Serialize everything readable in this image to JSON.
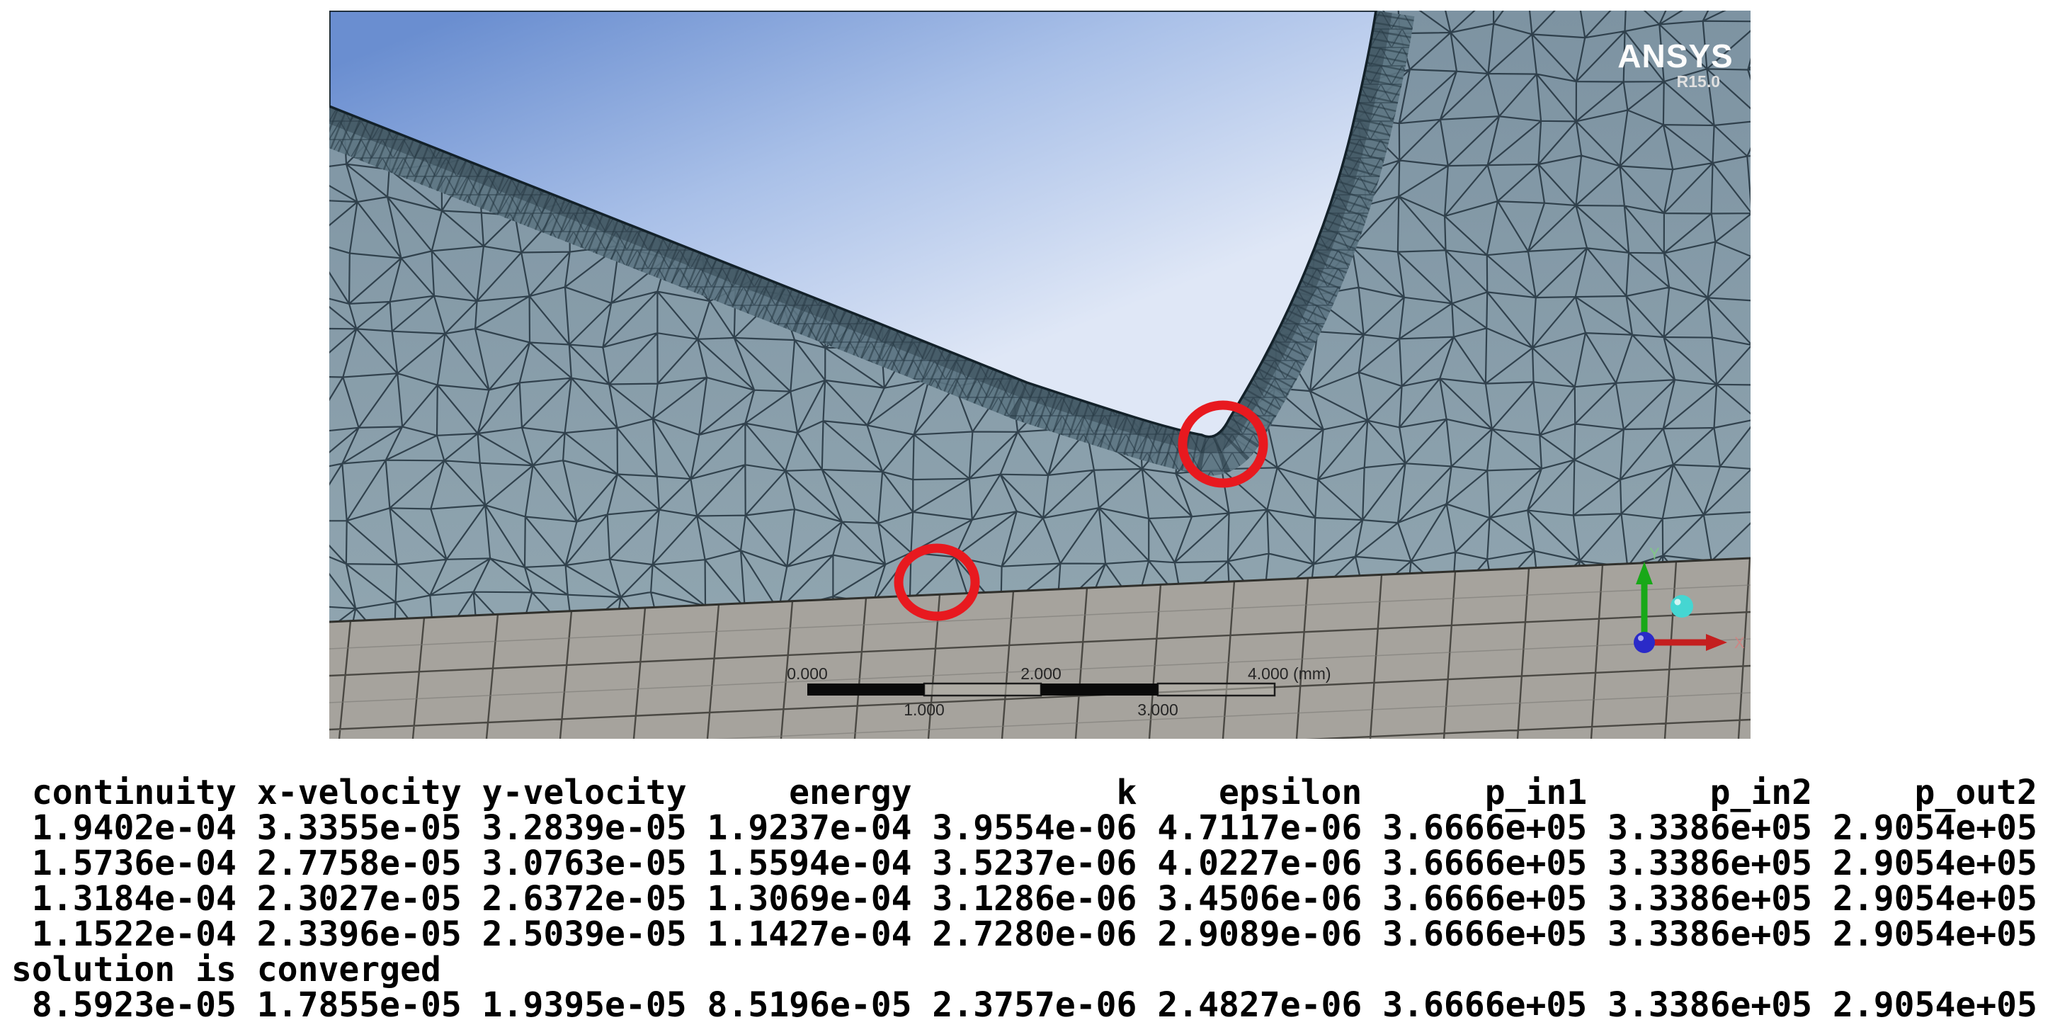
{
  "viewport": {
    "logo": {
      "brand": "ANSYS",
      "version": "R15.0"
    },
    "scale_ruler": {
      "top_labels": [
        "0.000",
        "2.000",
        "4.000 (mm)"
      ],
      "bottom_labels": [
        "1.000",
        "3.000"
      ]
    },
    "triad": {
      "x_label": "X",
      "y_label": "Y"
    },
    "annotation_color": "#e8191f",
    "colors": {
      "sky_top": "#6a8ed0",
      "sky_mid": "#a9c0e8",
      "sky_bottom": "#dfe7f6",
      "mesh_fill_top": "#7d93a2",
      "mesh_fill_bottom": "#93a8b2",
      "mesh_line": "#243440",
      "boundary_layer_band": "#5c7482",
      "quad_region_fill": "#a6a39d",
      "quad_region_line": "#44433e"
    }
  },
  "console": {
    "headers": [
      "continuity",
      "x-velocity",
      "y-velocity",
      "energy",
      "k",
      "epsilon",
      "p_in1",
      "p_in2",
      "p_out2"
    ],
    "rows": [
      [
        "1.9402e-04",
        "3.3355e-05",
        "3.2839e-05",
        "1.9237e-04",
        "3.9554e-06",
        "4.7117e-06",
        "3.6666e+05",
        "3.3386e+05",
        "2.9054e+05"
      ],
      [
        "1.5736e-04",
        "2.7758e-05",
        "3.0763e-05",
        "1.5594e-04",
        "3.5237e-06",
        "4.0227e-06",
        "3.6666e+05",
        "3.3386e+05",
        "2.9054e+05"
      ],
      [
        "1.3184e-04",
        "2.3027e-05",
        "2.6372e-05",
        "1.3069e-04",
        "3.1286e-06",
        "3.4506e-06",
        "3.6666e+05",
        "3.3386e+05",
        "2.9054e+05"
      ],
      [
        "1.1522e-04",
        "2.3396e-05",
        "2.5039e-05",
        "1.1427e-04",
        "2.7280e-06",
        "2.9089e-06",
        "3.6666e+05",
        "3.3386e+05",
        "2.9054e+05"
      ]
    ],
    "message": "solution is converged",
    "rows_after_message": [
      [
        "8.5923e-05",
        "1.7855e-05",
        "1.9395e-05",
        "8.5196e-05",
        "2.3757e-06",
        "2.4827e-06",
        "3.6666e+05",
        "3.3386e+05",
        "2.9054e+05"
      ]
    ]
  }
}
